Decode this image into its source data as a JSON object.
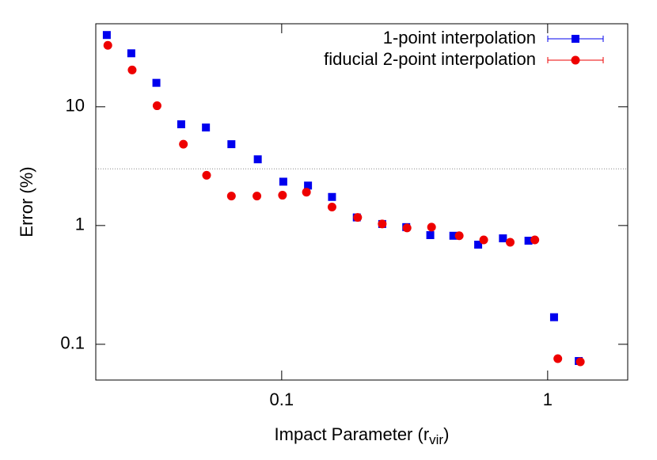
{
  "chart_data": {
    "type": "scatter",
    "xlabel": {
      "text": "Impact Parameter (r",
      "subscript": "vir",
      "suffix": ")"
    },
    "ylabel": "Error (%)",
    "xscale": "log",
    "yscale": "log",
    "xlim": [
      0.02,
      2
    ],
    "ylim": [
      0.05,
      50
    ],
    "xticks": [
      0.1,
      1
    ],
    "yticks": [
      0.1,
      1,
      10
    ],
    "hline": 3,
    "legend": "top-right",
    "series": [
      {
        "name": "1-point interpolation",
        "color": "#0000ee",
        "marker": "square",
        "x": [
          0.022,
          0.0272,
          0.0338,
          0.0419,
          0.0519,
          0.0647,
          0.0813,
          0.1014,
          0.1256,
          0.1546,
          0.1916,
          0.2388,
          0.294,
          0.362,
          0.442,
          0.548,
          0.679,
          0.847,
          1.057,
          1.309
        ],
        "values": [
          40.2,
          28.2,
          15.9,
          7.12,
          6.69,
          4.84,
          3.61,
          2.34,
          2.17,
          1.74,
          1.17,
          1.03,
          0.97,
          0.83,
          0.82,
          0.69,
          0.78,
          0.745,
          0.169,
          0.0723
        ]
      },
      {
        "name": "fiducial 2-point interpolation",
        "color": "#ee0000",
        "marker": "circle",
        "x": [
          0.0222,
          0.0274,
          0.034,
          0.0427,
          0.0522,
          0.0647,
          0.0807,
          0.1007,
          0.1239,
          0.1546,
          0.193,
          0.2388,
          0.296,
          0.366,
          0.465,
          0.575,
          0.723,
          0.895,
          1.092,
          1.327
        ],
        "values": [
          32.9,
          20.4,
          10.2,
          4.84,
          2.65,
          1.77,
          1.77,
          1.8,
          1.91,
          1.43,
          1.17,
          1.03,
          0.955,
          0.97,
          0.82,
          0.757,
          0.723,
          0.757,
          0.0757,
          0.0712
        ]
      }
    ]
  }
}
